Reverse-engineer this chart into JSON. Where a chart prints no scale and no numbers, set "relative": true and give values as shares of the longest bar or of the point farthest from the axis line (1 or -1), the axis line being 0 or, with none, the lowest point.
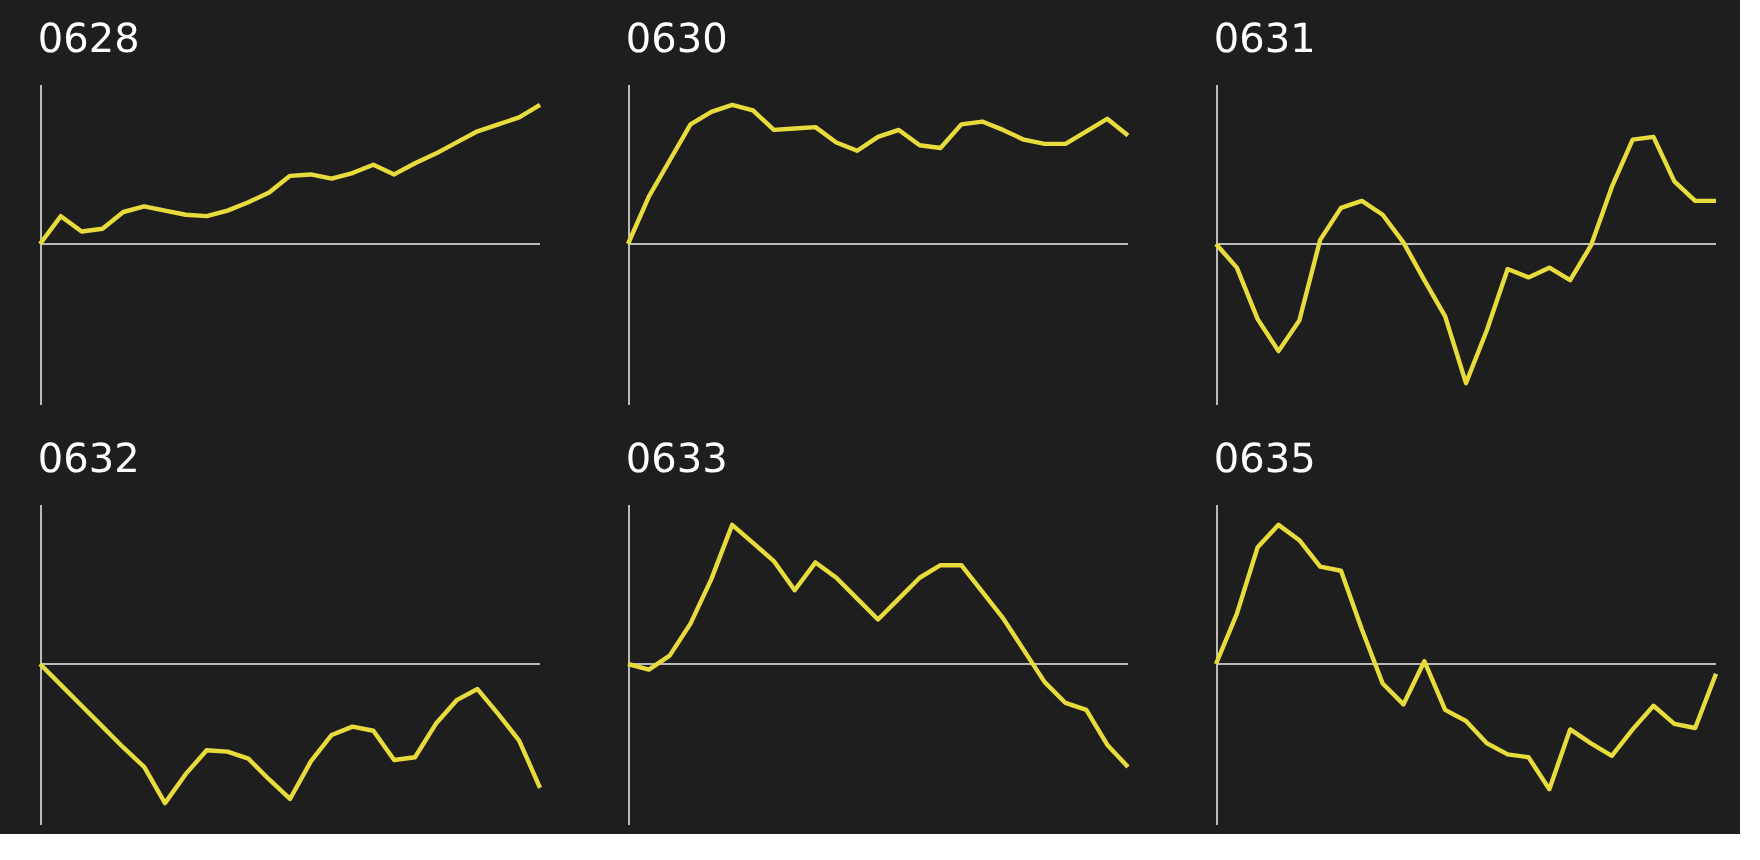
{
  "chart_data": [
    {
      "type": "line",
      "title": "0628",
      "relative": true,
      "tick_labels": false,
      "grid": false,
      "marker": "none",
      "line_style": "solid",
      "categories": [
        null,
        null,
        null,
        null,
        null,
        null,
        null,
        null,
        null,
        null,
        null,
        null,
        null,
        null,
        null,
        null,
        null,
        null,
        null,
        null,
        null,
        null,
        null,
        null,
        null
      ],
      "series": [
        {
          "color": "#e8dc3c",
          "values": [
            0,
            0.2,
            0.09,
            0.11,
            0.23,
            0.27,
            0.24,
            0.21,
            0.2,
            0.24,
            0.3,
            0.37,
            0.49,
            0.5,
            0.47,
            0.51,
            0.57,
            0.5,
            0.58,
            0.65,
            0.73,
            0.81,
            0.86,
            0.91,
            1
          ]
        }
      ]
    },
    {
      "type": "line",
      "title": "0630",
      "relative": true,
      "tick_labels": false,
      "grid": false,
      "marker": "none",
      "line_style": "solid",
      "categories": [
        null,
        null,
        null,
        null,
        null,
        null,
        null,
        null,
        null,
        null,
        null,
        null,
        null,
        null,
        null,
        null,
        null,
        null,
        null,
        null,
        null,
        null,
        null,
        null,
        null
      ],
      "series": [
        {
          "color": "#e8dc3c",
          "values": [
            0,
            0.34,
            0.6,
            0.86,
            0.95,
            1,
            0.96,
            0.82,
            0.83,
            0.84,
            0.73,
            0.67,
            0.77,
            0.82,
            0.71,
            0.69,
            0.86,
            0.88,
            0.82,
            0.75,
            0.72,
            0.72,
            0.81,
            0.9,
            0.78
          ]
        }
      ]
    },
    {
      "type": "line",
      "title": "0631",
      "relative": true,
      "tick_labels": false,
      "grid": false,
      "marker": "none",
      "line_style": "solid",
      "categories": [
        null,
        null,
        null,
        null,
        null,
        null,
        null,
        null,
        null,
        null,
        null,
        null,
        null,
        null,
        null,
        null,
        null,
        null,
        null,
        null,
        null,
        null,
        null,
        null,
        null
      ],
      "series": [
        {
          "color": "#e8dc3c",
          "values": [
            0,
            -0.17,
            -0.54,
            -0.77,
            -0.55,
            0.03,
            0.26,
            0.31,
            0.21,
            0.01,
            -0.26,
            -0.52,
            -1,
            -0.62,
            -0.18,
            -0.24,
            -0.17,
            -0.26,
            -0.01,
            0.41,
            0.75,
            0.77,
            0.45,
            0.31,
            0.31
          ]
        }
      ]
    },
    {
      "type": "line",
      "title": "0632",
      "relative": true,
      "tick_labels": false,
      "grid": false,
      "marker": "none",
      "line_style": "solid",
      "categories": [
        null,
        null,
        null,
        null,
        null,
        null,
        null,
        null,
        null,
        null,
        null,
        null,
        null,
        null,
        null,
        null,
        null,
        null,
        null,
        null,
        null,
        null,
        null,
        null,
        null
      ],
      "series": [
        {
          "color": "#e8dc3c",
          "values": [
            0,
            -0.15,
            -0.3,
            -0.45,
            -0.6,
            -0.74,
            -1,
            -0.79,
            -0.62,
            -0.63,
            -0.68,
            -0.83,
            -0.97,
            -0.7,
            -0.51,
            -0.45,
            -0.48,
            -0.69,
            -0.67,
            -0.43,
            -0.26,
            -0.18,
            -0.36,
            -0.55,
            -0.89
          ]
        }
      ]
    },
    {
      "type": "line",
      "title": "0633",
      "relative": true,
      "tick_labels": false,
      "grid": false,
      "marker": "none",
      "line_style": "solid",
      "categories": [
        null,
        null,
        null,
        null,
        null,
        null,
        null,
        null,
        null,
        null,
        null,
        null,
        null,
        null,
        null,
        null,
        null,
        null,
        null,
        null,
        null,
        null,
        null,
        null,
        null
      ],
      "series": [
        {
          "color": "#e8dc3c",
          "values": [
            0,
            -0.04,
            0.06,
            0.29,
            0.61,
            1,
            0.87,
            0.74,
            0.53,
            0.73,
            0.62,
            0.47,
            0.32,
            0.47,
            0.62,
            0.71,
            0.71,
            0.52,
            0.33,
            0.1,
            -0.13,
            -0.28,
            -0.33,
            -0.58,
            -0.74
          ]
        }
      ]
    },
    {
      "type": "line",
      "title": "0635",
      "relative": true,
      "tick_labels": false,
      "grid": false,
      "marker": "none",
      "line_style": "solid",
      "categories": [
        null,
        null,
        null,
        null,
        null,
        null,
        null,
        null,
        null,
        null,
        null,
        null,
        null,
        null,
        null,
        null,
        null,
        null,
        null,
        null,
        null,
        null,
        null,
        null,
        null
      ],
      "series": [
        {
          "color": "#e8dc3c",
          "values": [
            0,
            0.36,
            0.84,
            1,
            0.89,
            0.7,
            0.67,
            0.25,
            -0.14,
            -0.29,
            0.02,
            -0.33,
            -0.41,
            -0.57,
            -0.65,
            -0.67,
            -0.9,
            -0.47,
            -0.57,
            -0.66,
            -0.47,
            -0.3,
            -0.43,
            -0.46,
            -0.07
          ]
        }
      ]
    }
  ]
}
